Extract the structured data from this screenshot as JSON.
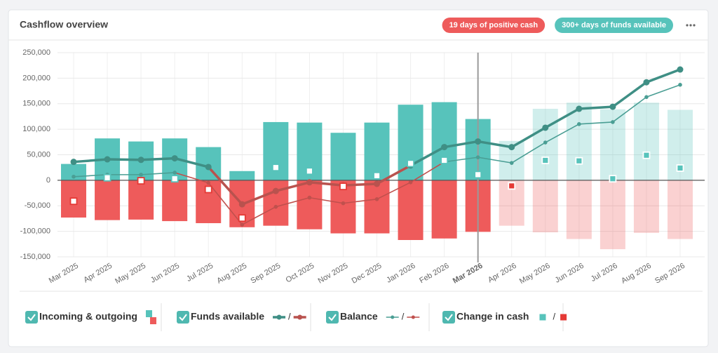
{
  "chart_data": {
    "type": "combo",
    "title": "Cashflow overview",
    "badges": [
      {
        "text": "19 days of positive cash",
        "color": "#ee5b5b"
      },
      {
        "text": "300+ days of funds available",
        "color": "#57c3bb"
      }
    ],
    "legend_separator": "/",
    "categories": [
      "Mar 2025",
      "Apr 2025",
      "May 2025",
      "Jun 2025",
      "Jul 2025",
      "Aug 2025",
      "Sep 2025",
      "Oct 2025",
      "Nov 2025",
      "Dec 2025",
      "Jan 2026",
      "Feb 2026",
      "Mar 2026",
      "Apr 2026",
      "May 2026",
      "Jun 2026",
      "Jul 2026",
      "Aug 2026",
      "Sep 2026"
    ],
    "current_index": 12,
    "current_color": "#2e8f86",
    "ylim": [
      -150000,
      250000
    ],
    "yticks": [
      {
        "value": -150000,
        "label": "-150,000"
      },
      {
        "value": -100000,
        "label": "-100,000"
      },
      {
        "value": -50000,
        "label": "-50,000"
      },
      0,
      {
        "value": 50000,
        "label": "50,000"
      },
      {
        "value": 100000,
        "label": "100,000"
      },
      {
        "value": 150000,
        "label": "150,000"
      },
      {
        "value": 200000,
        "label": "200,000"
      },
      {
        "value": 250000,
        "label": "250,000"
      }
    ],
    "grid": true,
    "series": [
      {
        "name": "Incoming & outgoing",
        "type": "bar",
        "color": "#57c3bb",
        "negative_color": "#ee5b5b",
        "incoming": [
          32000,
          82000,
          76000,
          82000,
          65000,
          18000,
          114000,
          113000,
          93000,
          113000,
          148000,
          153000,
          120000,
          77000,
          140000,
          152000,
          139000,
          152000,
          138000
        ],
        "outgoing": [
          -73000,
          -78000,
          -77000,
          -80000,
          -84000,
          -92000,
          -89000,
          -96000,
          -104000,
          -104000,
          -117000,
          -114000,
          -101000,
          -89000,
          -102000,
          -115000,
          -135000,
          -103000,
          -115000
        ]
      },
      {
        "name": "Funds available",
        "type": "line",
        "color": "#3f8f85",
        "negative_color": "#b9524e",
        "values": [
          36000,
          41000,
          40000,
          43000,
          26000,
          -47000,
          -21000,
          -4000,
          -10000,
          -7000,
          29000,
          65000,
          76000,
          65000,
          103000,
          140000,
          144000,
          192000,
          217000
        ]
      },
      {
        "name": "Balance",
        "type": "line",
        "color": "#4a9e94",
        "negative_color": "#c0504d",
        "values": [
          7000,
          11000,
          11000,
          15000,
          -5000,
          -87000,
          -52000,
          -34000,
          -45000,
          -37000,
          -4000,
          36000,
          45000,
          34000,
          74000,
          110000,
          114000,
          163000,
          187000
        ]
      },
      {
        "name": "Change in cash",
        "type": "marker",
        "color": "#57c3bb",
        "negative_color": "#e53935",
        "values": [
          -41000,
          5000,
          -1000,
          3000,
          -18000,
          -74000,
          25000,
          18000,
          -12000,
          9000,
          33000,
          39000,
          11000,
          -11000,
          39000,
          38000,
          3000,
          49000,
          24000
        ]
      }
    ]
  }
}
